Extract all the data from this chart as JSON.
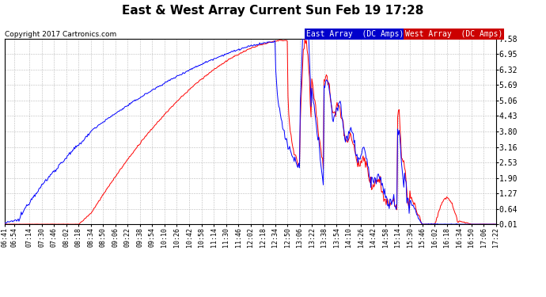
{
  "title": "East & West Array Current Sun Feb 19 17:28",
  "copyright": "Copyright 2017 Cartronics.com",
  "legend_east": "East Array  (DC Amps)",
  "legend_west": "West Array  (DC Amps)",
  "east_color": "#0000ff",
  "west_color": "#ff0000",
  "legend_east_bg": "#0000cc",
  "legend_west_bg": "#cc0000",
  "background_color": "#ffffff",
  "grid_color": "#bbbbbb",
  "ylim": [
    0.01,
    7.58
  ],
  "yticks": [
    0.01,
    0.64,
    1.27,
    1.9,
    2.53,
    3.16,
    3.8,
    4.43,
    5.06,
    5.69,
    6.32,
    6.95,
    7.58
  ],
  "xtick_labels": [
    "06:41",
    "06:54",
    "07:14",
    "07:30",
    "07:46",
    "08:02",
    "08:18",
    "08:34",
    "08:50",
    "09:06",
    "09:22",
    "09:38",
    "09:54",
    "10:10",
    "10:26",
    "10:42",
    "10:58",
    "11:14",
    "11:30",
    "11:46",
    "12:02",
    "12:18",
    "12:34",
    "12:50",
    "13:06",
    "13:22",
    "13:38",
    "13:54",
    "14:10",
    "14:26",
    "14:42",
    "14:58",
    "15:14",
    "15:30",
    "15:46",
    "16:02",
    "16:18",
    "16:34",
    "16:50",
    "17:06",
    "17:22"
  ]
}
